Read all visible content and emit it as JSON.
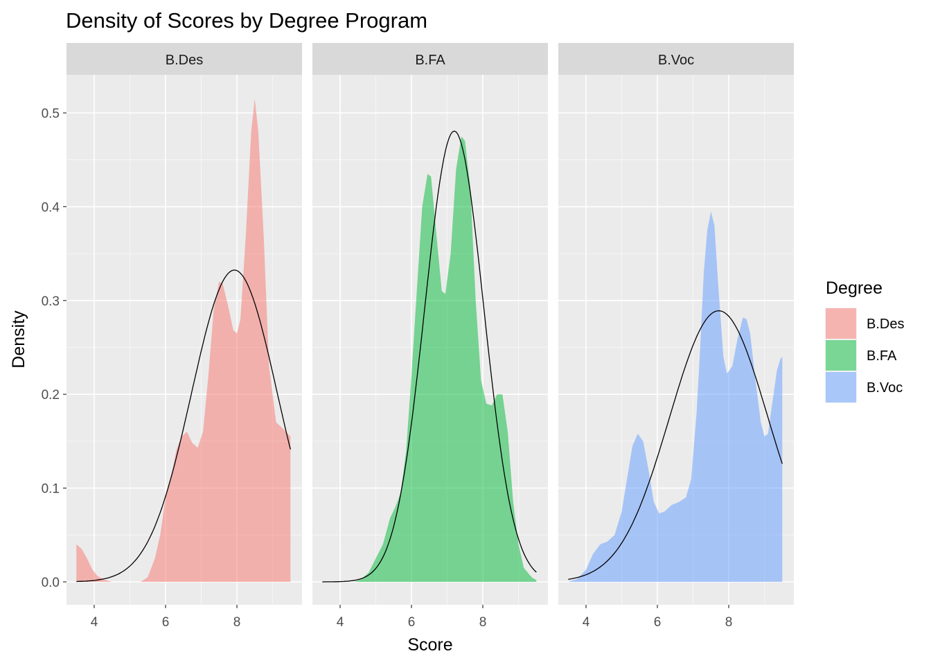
{
  "chart_data": {
    "type": "area",
    "title": "Density of Scores by Degree Program",
    "xlabel": "Score",
    "ylabel": "Density",
    "xlim": [
      3.5,
      9.5
    ],
    "ylim": [
      0,
      0.5
    ],
    "x_ticks": [
      4,
      6,
      8
    ],
    "x_tick_labels": [
      "4",
      "6",
      "8"
    ],
    "y_ticks": [
      0.0,
      0.1,
      0.2,
      0.3,
      0.4,
      0.5
    ],
    "y_tick_labels": [
      "0.0",
      "0.1",
      "0.2",
      "0.3",
      "0.4",
      "0.5"
    ],
    "grid": true,
    "legend": {
      "title": "Degree",
      "position": "right",
      "entries": [
        "B.Des",
        "B.FA",
        "B.Voc"
      ]
    },
    "panels": [
      {
        "strip": "B.Des",
        "fill_color": "#F8766D",
        "density_points": [
          [
            3.5,
            0.04
          ],
          [
            3.65,
            0.035
          ],
          [
            3.8,
            0.025
          ],
          [
            3.95,
            0.013
          ],
          [
            4.1,
            0.006
          ],
          [
            4.3,
            0.002
          ],
          [
            4.5,
            0.0
          ],
          [
            5.0,
            0.0
          ],
          [
            5.3,
            0.0
          ],
          [
            5.5,
            0.005
          ],
          [
            5.7,
            0.025
          ],
          [
            5.85,
            0.05
          ],
          [
            6.0,
            0.09
          ],
          [
            6.15,
            0.11
          ],
          [
            6.3,
            0.14
          ],
          [
            6.45,
            0.155
          ],
          [
            6.6,
            0.16
          ],
          [
            6.75,
            0.148
          ],
          [
            6.9,
            0.143
          ],
          [
            7.05,
            0.16
          ],
          [
            7.2,
            0.22
          ],
          [
            7.35,
            0.29
          ],
          [
            7.5,
            0.32
          ],
          [
            7.6,
            0.318
          ],
          [
            7.75,
            0.295
          ],
          [
            7.9,
            0.268
          ],
          [
            8.0,
            0.265
          ],
          [
            8.1,
            0.28
          ],
          [
            8.25,
            0.37
          ],
          [
            8.4,
            0.48
          ],
          [
            8.5,
            0.515
          ],
          [
            8.6,
            0.48
          ],
          [
            8.75,
            0.37
          ],
          [
            8.9,
            0.23
          ],
          [
            9.1,
            0.17
          ],
          [
            9.3,
            0.163
          ],
          [
            9.5,
            0.155
          ]
        ],
        "normal_curve": {
          "mean": 7.93,
          "sd": 1.2,
          "x_range": [
            3.5,
            9.5
          ]
        }
      },
      {
        "strip": "B.FA",
        "fill_color": "#00BA38",
        "density_points": [
          [
            4.4,
            0.0
          ],
          [
            4.6,
            0.003
          ],
          [
            4.8,
            0.01
          ],
          [
            5.0,
            0.025
          ],
          [
            5.2,
            0.04
          ],
          [
            5.4,
            0.068
          ],
          [
            5.55,
            0.08
          ],
          [
            5.7,
            0.095
          ],
          [
            5.85,
            0.14
          ],
          [
            6.0,
            0.22
          ],
          [
            6.15,
            0.31
          ],
          [
            6.3,
            0.4
          ],
          [
            6.45,
            0.435
          ],
          [
            6.55,
            0.432
          ],
          [
            6.7,
            0.37
          ],
          [
            6.85,
            0.31
          ],
          [
            6.95,
            0.307
          ],
          [
            7.1,
            0.35
          ],
          [
            7.25,
            0.44
          ],
          [
            7.4,
            0.475
          ],
          [
            7.5,
            0.47
          ],
          [
            7.65,
            0.42
          ],
          [
            7.8,
            0.3
          ],
          [
            7.95,
            0.215
          ],
          [
            8.1,
            0.19
          ],
          [
            8.25,
            0.188
          ],
          [
            8.4,
            0.2
          ],
          [
            8.55,
            0.2
          ],
          [
            8.7,
            0.16
          ],
          [
            8.85,
            0.085
          ],
          [
            9.0,
            0.04
          ],
          [
            9.15,
            0.015
          ],
          [
            9.3,
            0.008
          ],
          [
            9.4,
            0.004
          ],
          [
            9.5,
            0.002
          ]
        ],
        "normal_curve": {
          "mean": 7.2,
          "sd": 0.83,
          "x_range": [
            3.5,
            9.5
          ]
        }
      },
      {
        "strip": "B.Voc",
        "fill_color": "#619CFF",
        "density_points": [
          [
            3.5,
            0.0
          ],
          [
            3.75,
            0.003
          ],
          [
            4.0,
            0.013
          ],
          [
            4.2,
            0.03
          ],
          [
            4.4,
            0.04
          ],
          [
            4.6,
            0.043
          ],
          [
            4.8,
            0.05
          ],
          [
            5.0,
            0.075
          ],
          [
            5.15,
            0.11
          ],
          [
            5.3,
            0.145
          ],
          [
            5.45,
            0.158
          ],
          [
            5.6,
            0.15
          ],
          [
            5.75,
            0.12
          ],
          [
            5.9,
            0.085
          ],
          [
            6.05,
            0.073
          ],
          [
            6.2,
            0.075
          ],
          [
            6.4,
            0.082
          ],
          [
            6.6,
            0.085
          ],
          [
            6.8,
            0.09
          ],
          [
            6.95,
            0.11
          ],
          [
            7.1,
            0.18
          ],
          [
            7.2,
            0.25
          ],
          [
            7.3,
            0.33
          ],
          [
            7.4,
            0.375
          ],
          [
            7.5,
            0.395
          ],
          [
            7.6,
            0.38
          ],
          [
            7.7,
            0.32
          ],
          [
            7.85,
            0.24
          ],
          [
            7.95,
            0.222
          ],
          [
            8.1,
            0.23
          ],
          [
            8.25,
            0.26
          ],
          [
            8.4,
            0.282
          ],
          [
            8.5,
            0.28
          ],
          [
            8.6,
            0.265
          ],
          [
            8.75,
            0.215
          ],
          [
            8.9,
            0.17
          ],
          [
            9.0,
            0.155
          ],
          [
            9.1,
            0.158
          ],
          [
            9.2,
            0.185
          ],
          [
            9.35,
            0.225
          ],
          [
            9.45,
            0.238
          ],
          [
            9.5,
            0.24
          ]
        ],
        "normal_curve": {
          "mean": 7.72,
          "sd": 1.38,
          "x_range": [
            3.5,
            9.5
          ]
        }
      }
    ]
  }
}
